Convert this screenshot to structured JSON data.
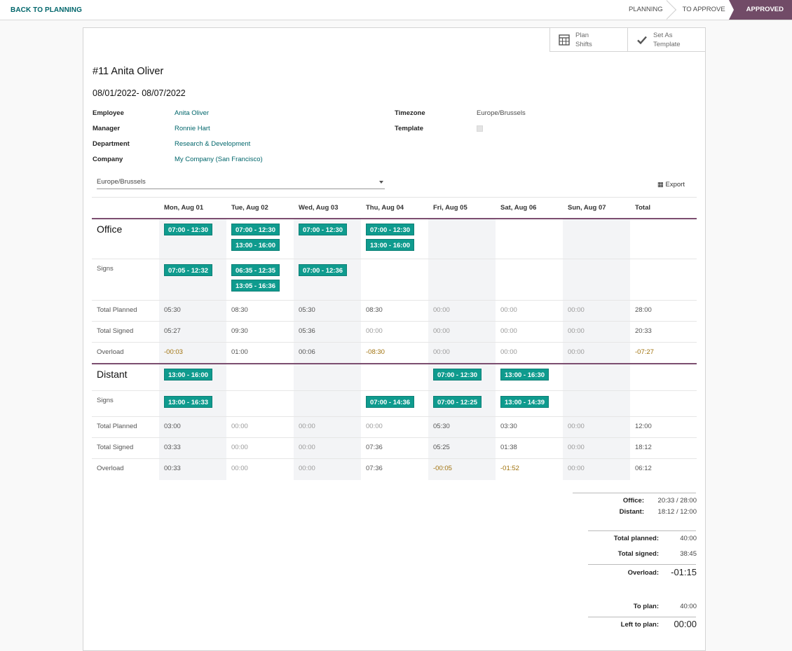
{
  "nav": {
    "back_label": "BACK TO PLANNING",
    "stages": [
      "PLANNING",
      "TO APPROVE",
      "APPROVED"
    ],
    "active_stage": "APPROVED"
  },
  "buttons": {
    "plan_shifts": "Plan\nShifts",
    "set_template": "Set As\nTemplate"
  },
  "record": {
    "title": "#11 Anita Oliver",
    "dates": "08/01/2022- 08/07/2022",
    "fields": {
      "employee_label": "Employee",
      "employee": "Anita Oliver",
      "manager_label": "Manager",
      "manager": "Ronnie Hart",
      "department_label": "Department",
      "department": "Research & Development",
      "company_label": "Company",
      "company": "My Company (San Francisco)",
      "timezone_label": "Timezone",
      "timezone": "Europe/Brussels",
      "template_label": "Template",
      "template_checked": false
    }
  },
  "toolbar": {
    "tz_select": "Europe/Brussels",
    "export_label": "Export"
  },
  "grid": {
    "columns": [
      "Mon, Aug 01",
      "Tue, Aug 02",
      "Wed, Aug 03",
      "Thu, Aug 04",
      "Fri, Aug 05",
      "Sat, Aug 06",
      "Sun, Aug 07",
      "Total"
    ],
    "sections": [
      {
        "name": "Office",
        "shifts": [
          [
            "07:00 - 12:30"
          ],
          [
            "07:00 - 12:30",
            "13:00 - 16:00"
          ],
          [
            "07:00 - 12:30"
          ],
          [
            "07:00 - 12:30",
            "13:00 - 16:00"
          ],
          [],
          [],
          []
        ],
        "signs_label": "Signs",
        "signs": [
          [
            "07:05 - 12:32"
          ],
          [
            "06:35 - 12:35",
            "13:05 - 16:36"
          ],
          [
            "07:00 - 12:36"
          ],
          [],
          [],
          [],
          []
        ],
        "rows": [
          {
            "label": "Total Planned",
            "values": [
              "05:30",
              "08:30",
              "05:30",
              "08:30",
              "00:00",
              "00:00",
              "00:00",
              "28:00"
            ]
          },
          {
            "label": "Total Signed",
            "values": [
              "05:27",
              "09:30",
              "05:36",
              "00:00",
              "00:00",
              "00:00",
              "00:00",
              "20:33"
            ]
          },
          {
            "label": "Overload",
            "values": [
              "-00:03",
              "01:00",
              "00:06",
              "-08:30",
              "00:00",
              "00:00",
              "00:00",
              "-07:27"
            ]
          }
        ]
      },
      {
        "name": "Distant",
        "shifts": [
          [
            "13:00 - 16:00"
          ],
          [],
          [],
          [],
          [
            "07:00 - 12:30"
          ],
          [
            "13:00 - 16:30"
          ],
          []
        ],
        "signs_label": "Signs",
        "signs": [
          [
            "13:00 - 16:33"
          ],
          [],
          [],
          [
            "07:00 - 14:36"
          ],
          [
            "07:00 - 12:25"
          ],
          [
            "13:00 - 14:39"
          ],
          []
        ],
        "rows": [
          {
            "label": "Total Planned",
            "values": [
              "03:00",
              "00:00",
              "00:00",
              "00:00",
              "05:30",
              "03:30",
              "00:00",
              "12:00"
            ]
          },
          {
            "label": "Total Signed",
            "values": [
              "03:33",
              "00:00",
              "00:00",
              "07:36",
              "05:25",
              "01:38",
              "00:00",
              "18:12"
            ]
          },
          {
            "label": "Overload",
            "values": [
              "00:33",
              "00:00",
              "00:00",
              "07:36",
              "-00:05",
              "-01:52",
              "00:00",
              "06:12"
            ]
          }
        ]
      }
    ]
  },
  "summary": {
    "office_label": "Office:",
    "office_value": "20:33 / 28:00",
    "distant_label": "Distant:",
    "distant_value": "18:12 / 12:00",
    "total_planned_label": "Total planned:",
    "total_planned": "40:00",
    "total_signed_label": "Total signed:",
    "total_signed": "38:45",
    "overload_label": "Overload:",
    "overload": "-01:15",
    "to_plan_label": "To plan:",
    "to_plan": "40:00",
    "left_label": "Left to plan:",
    "left": "00:00"
  },
  "colors": {
    "accent": "#714b67",
    "link": "#01666b",
    "shift": "#0f9b8e",
    "negative": "#a0720d"
  }
}
